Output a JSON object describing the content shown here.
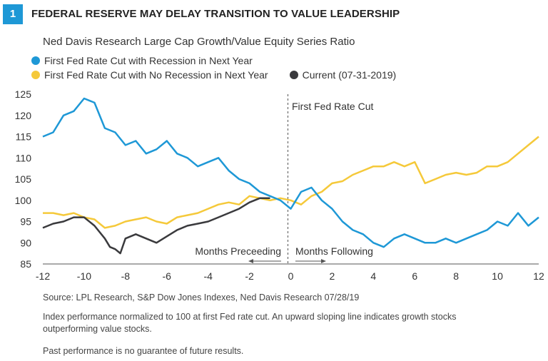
{
  "figure": {
    "number": "1",
    "title": "FEDERAL RESERVE MAY DELAY TRANSITION TO VALUE LEADERSHIP",
    "subtitle": "Ned Davis Research Large Cap Growth/Value Equity Series Ratio"
  },
  "colors": {
    "badge": "#1e98d6",
    "recession": "#1e98d6",
    "no_recession": "#f5c93a",
    "current": "#3a3a3d"
  },
  "chart_data": {
    "type": "line",
    "xlim": [
      -12,
      12
    ],
    "ylim": [
      85,
      125
    ],
    "x_ticks": [
      -12,
      -10,
      -8,
      -6,
      -4,
      -2,
      0,
      2,
      4,
      6,
      8,
      10,
      12
    ],
    "y_ticks": [
      85,
      90,
      95,
      100,
      105,
      110,
      115,
      120,
      125
    ],
    "grid": false,
    "legend_position": "top-left",
    "series": [
      {
        "name": "First Fed Rate Cut with Recession in Next Year",
        "color": "#1e98d6",
        "x": [
          -12,
          -11.5,
          -11,
          -10.5,
          -10,
          -9.5,
          -9,
          -8.5,
          -8,
          -7.5,
          -7,
          -6.5,
          -6,
          -5.5,
          -5,
          -4.5,
          -4,
          -3.5,
          -3,
          -2.5,
          -2,
          -1.5,
          -1,
          -0.5,
          0,
          0.5,
          1,
          1.5,
          2,
          2.5,
          3,
          3.5,
          4,
          4.5,
          5,
          5.5,
          6,
          6.5,
          7,
          7.5,
          8,
          8.5,
          9,
          9.5,
          10,
          10.5,
          11,
          11.5,
          12
        ],
        "y": [
          115,
          116,
          120,
          121,
          124,
          123,
          117,
          116,
          113,
          114,
          111,
          112,
          114,
          111,
          110,
          108,
          109,
          110,
          107,
          105,
          104,
          102,
          101,
          100,
          98,
          102,
          103,
          100,
          98,
          95,
          93,
          92,
          90,
          89,
          91,
          92,
          91,
          90,
          90,
          91,
          90,
          91,
          92,
          93,
          95,
          94,
          97,
          94,
          96
        ]
      },
      {
        "name": "First Fed Rate Cut with No Recession in Next Year",
        "color": "#f5c93a",
        "x": [
          -12,
          -11.5,
          -11,
          -10.5,
          -10,
          -9.5,
          -9,
          -8.5,
          -8,
          -7.5,
          -7,
          -6.5,
          -6,
          -5.5,
          -5,
          -4.5,
          -4,
          -3.5,
          -3,
          -2.5,
          -2,
          -1.5,
          -1,
          -0.5,
          0,
          0.5,
          1,
          1.5,
          2,
          2.5,
          3,
          3.5,
          4,
          4.5,
          5,
          5.5,
          6,
          6.5,
          7,
          7.5,
          8,
          8.5,
          9,
          9.5,
          10,
          10.5,
          11,
          11.5,
          12
        ],
        "y": [
          97,
          97,
          96.5,
          97,
          96,
          95.5,
          93.5,
          94,
          95,
          95.5,
          96,
          95,
          94.5,
          96,
          96.5,
          97,
          98,
          99,
          99.5,
          99,
          101,
          100.5,
          100,
          100.5,
          100,
          99,
          101,
          102,
          104,
          104.5,
          106,
          107,
          108,
          108,
          109,
          108,
          109,
          104,
          105,
          106,
          106.5,
          106,
          106.5,
          108,
          108,
          109,
          111,
          113,
          115
        ]
      },
      {
        "name": "Current",
        "color": "#3a3a3d",
        "x": [
          -12,
          -11.5,
          -11,
          -10.5,
          -10,
          -9.5,
          -9,
          -8.75,
          -8.5,
          -8.25,
          -8,
          -7.5,
          -7,
          -6.5,
          -6,
          -5.5,
          -5,
          -4.5,
          -4,
          -3.5,
          -3,
          -2.5,
          -2,
          -1.5,
          -1
        ],
        "y": [
          93.5,
          94.5,
          95,
          96,
          96,
          94,
          91,
          89,
          88.5,
          87.5,
          91,
          92,
          91,
          90,
          91.5,
          93,
          94,
          94.5,
          95,
          96,
          97,
          98,
          99.5,
          100.5,
          100.5
        ]
      }
    ]
  },
  "legend": {
    "recession": "First Fed Rate Cut with Recession in Next Year",
    "no_recession": "First Fed Rate Cut with No Recession in Next Year",
    "current": "Current",
    "current_date": "(07-31-2019)"
  },
  "annotations": {
    "rate_cut": "First Fed Rate Cut",
    "preceeding": "Months Preceeding",
    "following": "Months Following"
  },
  "notes": {
    "source": "Source: LPL Research, S&P Dow Jones Indexes, Ned Davis Research   07/28/19",
    "index_note": "Index performance normalized to 100 at first Fed rate cut. An upward sloping line indicates growth stocks outperforming value stocks.",
    "disclaimer": "Past performance is no guarantee of future results."
  }
}
